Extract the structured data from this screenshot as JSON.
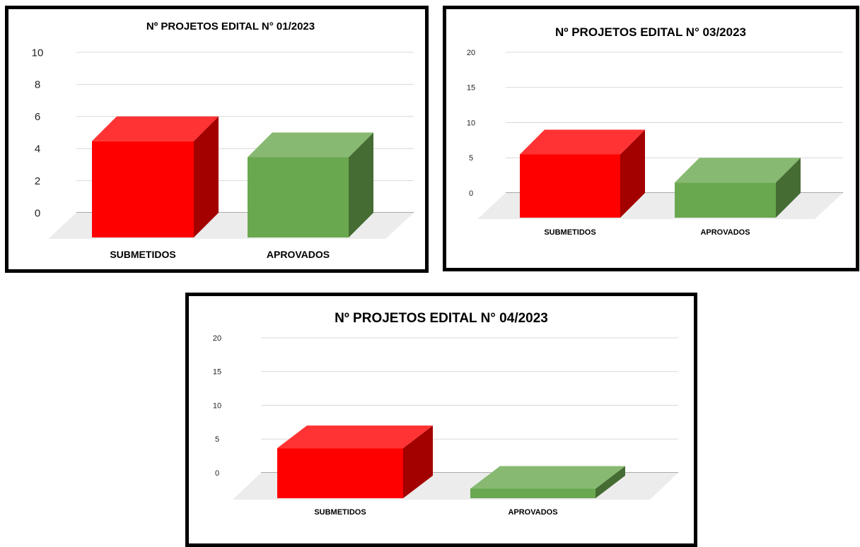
{
  "chart_data": [
    {
      "type": "bar",
      "title": "Nº PROJETOS EDITAL N° 01/2023",
      "categories": [
        "SUBMETIDOS",
        "APROVADOS"
      ],
      "values": [
        6,
        5
      ],
      "yticks": [
        0,
        2,
        4,
        6,
        8,
        10
      ],
      "ylim": [
        0,
        10
      ],
      "xlabel": "",
      "ylabel": "",
      "grid": true,
      "legend": "none",
      "colors": [
        "#ff0000",
        "#6aa84f"
      ]
    },
    {
      "type": "bar",
      "title": "Nº PROJETOS EDITAL N° 03/2023",
      "categories": [
        "SUBMETIDOS",
        "APROVADOS"
      ],
      "values": [
        9,
        5
      ],
      "yticks": [
        0,
        5,
        10,
        15,
        20
      ],
      "ylim": [
        0,
        20
      ],
      "xlabel": "",
      "ylabel": "",
      "grid": true,
      "legend": "none",
      "colors": [
        "#ff0000",
        "#6aa84f"
      ]
    },
    {
      "type": "bar",
      "title": "Nº PROJETOS EDITAL N° 04/2023",
      "categories": [
        "SUBMETIDOS",
        "APROVADOS"
      ],
      "values": [
        7,
        1
      ],
      "yticks": [
        0,
        5,
        10,
        15,
        20
      ],
      "ylim": [
        0,
        20
      ],
      "xlabel": "",
      "ylabel": "",
      "grid": true,
      "legend": "none",
      "colors": [
        "#ff0000",
        "#6aa84f"
      ]
    }
  ]
}
